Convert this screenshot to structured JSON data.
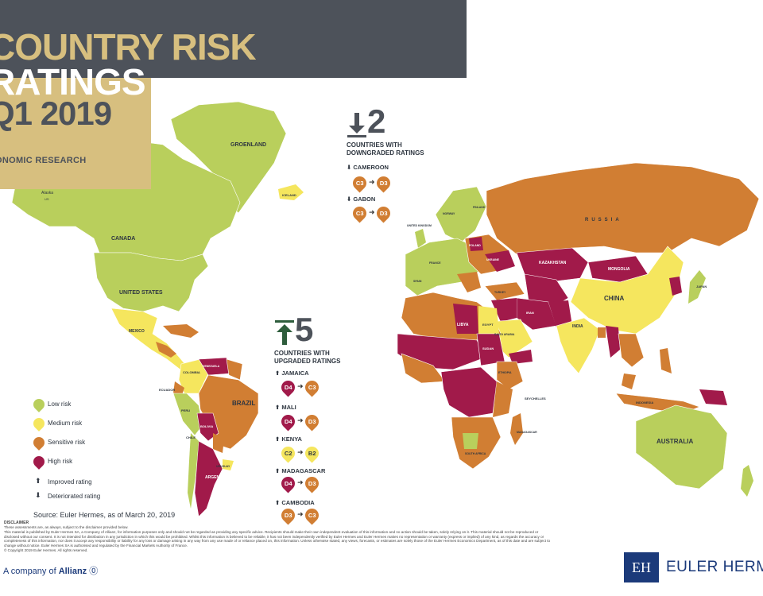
{
  "title": {
    "line1": "COUNTRY RISK",
    "line2": "RATINGS",
    "line3": "Q1 2019",
    "subtitle": "ONOMIC RESEARCH"
  },
  "colors": {
    "low": "#b9cf5c",
    "medium": "#f5e65e",
    "sensitive": "#d17e33",
    "high": "#a11a4a",
    "header": "#4d525a",
    "gold": "#d7bf7f",
    "brand": "#1b3a7a"
  },
  "downgraded": {
    "count": "2",
    "label": "COUNTRIES WITH DOWNGRADED RATINGS",
    "entries": [
      {
        "country": "CAMEROON",
        "from": "C3",
        "to": "D3"
      },
      {
        "country": "GABON",
        "from": "C3",
        "to": "D3"
      }
    ]
  },
  "upgraded": {
    "count": "5",
    "label": "COUNTRIES WITH UPGRADED RATINGS",
    "entries": [
      {
        "country": "JAMAICA",
        "from": "D4",
        "to": "C3"
      },
      {
        "country": "MALI",
        "from": "D4",
        "to": "D3"
      },
      {
        "country": "KENYA",
        "from": "C2",
        "to": "B2"
      },
      {
        "country": "MADAGASCAR",
        "from": "D4",
        "to": "D3"
      },
      {
        "country": "CAMBODIA",
        "from": "D3",
        "to": "C3"
      }
    ]
  },
  "legend": {
    "low": "Low risk",
    "medium": "Medium risk",
    "sensitive": "Sensitive risk",
    "high": "High risk",
    "improved": "Improved rating",
    "deteriorated": "Deteriorated rating"
  },
  "map_labels": {
    "greenland": "GROENLAND",
    "alaska": "Alaska",
    "alaska_us": "US",
    "iceland": "ICELAND",
    "canada": "CANADA",
    "usa": "UNITED STATES",
    "mexico": "MEXICO",
    "russia": "RUSSIA",
    "china": "CHINA",
    "india": "INDIA",
    "kazakhstan": "KAZAKHSTAN",
    "mongolia": "MONGOLIA",
    "brazil": "BRAZIL",
    "argentina": "ARGENTINA",
    "australia": "AUSTRALIA",
    "peru": "PERU",
    "colombia": "COLOMBIA",
    "bolivia": "BOLIVIA",
    "chile": "CHILE",
    "venezuela": "VENEZUELA",
    "libya": "LIBYA",
    "egypt": "EGYPT",
    "sudan": "SUDAN",
    "iran": "IRAN",
    "japan": "JAPAN",
    "indonesia": "INDONESIA",
    "seychelles": "SEYCHELLES",
    "norway": "NORWAY",
    "finland": "FINLAND",
    "uk": "UNITED KINGDOM",
    "ukraine": "UKRAINE",
    "poland": "POLAND",
    "france": "FRANCE",
    "spain": "SPAIN",
    "turkey": "TURKEY",
    "ecuador": "ECUADOR",
    "uruguay": "URUGUAY",
    "south_africa": "SOUTH AFRICA",
    "ethiopia": "ETHIOPIA",
    "saudi": "SAUDI ARABIA",
    "madagascar": "MADAGASCAR"
  },
  "source": "Source: Euler Hermes, as of March 20, 2019",
  "disclaimer": {
    "head": "DISCLAIMER",
    "line1": "These assessments are, as always, subject to the disclaimer provided below.",
    "body": "This material is published by Euler Hermes SA, a Company of Allianz, for information purposes only and should not be regarded as providing any specific advice. Recipients should make their own independent evaluation of this information and no action should be taken, solely relying on it. This material should not be reproduced or disclosed without our consent. It is not intended for distribution in any jurisdiction in which this would be prohibited. Whilst this information is believed to be reliable, it has not been independently verified by Euler Hermes and Euler Hermes makes no representation or warranty (express or implied) of any kind, as regards the accuracy or completeness of this information, nor does it accept any responsibility or liability for any loss or damage arising in any way from any use made of or reliance placed on, this information. Unless otherwise stated, any views, forecasts, or estimates are solely those of the Euler Hermes Economics Department, as of this date and are subject to change without notice. Euler Hermes SA is authorised and regulated by the Financial Markets Authority of France.",
    "copyright": "© Copyright 2019 Euler Hermes. All rights reserved."
  },
  "footer": {
    "allianz_prefix": "A company of",
    "allianz": "Allianz",
    "brand": "EULER HERMES",
    "brand_mark": "EH"
  }
}
